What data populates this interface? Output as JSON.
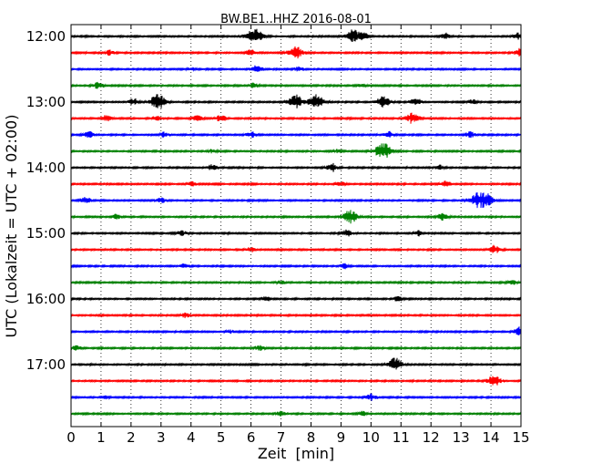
{
  "chart_data": {
    "type": "line",
    "title": "BW.BE1..HHZ 2016-08-01",
    "xlabel": "Zeit  [min]",
    "ylabel": "UTC (Lokalzeit = UTC + 02:00)",
    "xlim": [
      0,
      15
    ],
    "x_ticks": [
      "0",
      "1",
      "2",
      "3",
      "4",
      "5",
      "6",
      "7",
      "8",
      "9",
      "10",
      "11",
      "12",
      "13",
      "14",
      "15"
    ],
    "y_ticks": [
      {
        "label": "12:00",
        "row": 0
      },
      {
        "label": "13:00",
        "row": 4
      },
      {
        "label": "14:00",
        "row": 8
      },
      {
        "label": "15:00",
        "row": 12
      },
      {
        "label": "16:00",
        "row": 16
      },
      {
        "label": "17:00",
        "row": 20
      }
    ],
    "grid": "vertical-dotted",
    "row_minutes": 15,
    "colors": [
      "#000000",
      "#ff0000",
      "#0000ff",
      "#008000"
    ],
    "traces": [
      {
        "start": "12:00",
        "color": "#000000",
        "bursts": [
          [
            6.1,
            1.0
          ],
          [
            9.4,
            0.8
          ],
          [
            9.8,
            0.5
          ],
          [
            12.5,
            0.4
          ],
          [
            14.9,
            0.4
          ]
        ]
      },
      {
        "start": "12:15",
        "color": "#ff0000",
        "bursts": [
          [
            1.3,
            0.3
          ],
          [
            6.0,
            0.4
          ],
          [
            7.5,
            0.8
          ],
          [
            15.0,
            0.6
          ]
        ]
      },
      {
        "start": "12:30",
        "color": "#0000ff",
        "bursts": [
          [
            4.0,
            0.2
          ],
          [
            6.2,
            0.5
          ],
          [
            7.6,
            0.3
          ]
        ]
      },
      {
        "start": "12:45",
        "color": "#008000",
        "bursts": [
          [
            0.9,
            0.4
          ],
          [
            6.1,
            0.3
          ],
          [
            9.7,
            0.2
          ]
        ]
      },
      {
        "start": "13:00",
        "color": "#000000",
        "bursts": [
          [
            2.1,
            0.4
          ],
          [
            2.8,
            0.6
          ],
          [
            3.0,
            0.6
          ],
          [
            7.5,
            0.9
          ],
          [
            8.2,
            0.9
          ],
          [
            10.4,
            0.7
          ],
          [
            11.5,
            0.5
          ],
          [
            13.4,
            0.3
          ]
        ]
      },
      {
        "start": "13:15",
        "color": "#ff0000",
        "bursts": [
          [
            1.2,
            0.4
          ],
          [
            2.9,
            0.3
          ],
          [
            4.2,
            0.4
          ],
          [
            5.0,
            0.4
          ],
          [
            11.4,
            0.7
          ]
        ]
      },
      {
        "start": "13:30",
        "color": "#0000ff",
        "bursts": [
          [
            0.6,
            0.4
          ],
          [
            3.1,
            0.3
          ],
          [
            6.0,
            0.4
          ],
          [
            10.6,
            0.4
          ],
          [
            13.3,
            0.4
          ]
        ]
      },
      {
        "start": "13:45",
        "color": "#008000",
        "bursts": [
          [
            4.7,
            0.2
          ],
          [
            8.9,
            0.2
          ],
          [
            10.4,
            1.0
          ]
        ]
      },
      {
        "start": "14:00",
        "color": "#000000",
        "bursts": [
          [
            4.7,
            0.4
          ],
          [
            8.7,
            0.5
          ],
          [
            12.3,
            0.3
          ]
        ]
      },
      {
        "start": "14:15",
        "color": "#ff0000",
        "bursts": [
          [
            4.0,
            0.3
          ],
          [
            9.0,
            0.3
          ],
          [
            12.5,
            0.4
          ]
        ]
      },
      {
        "start": "14:30",
        "color": "#0000ff",
        "bursts": [
          [
            0.5,
            0.4
          ],
          [
            3.0,
            0.3
          ],
          [
            13.7,
            1.3
          ]
        ]
      },
      {
        "start": "14:45",
        "color": "#008000",
        "bursts": [
          [
            1.5,
            0.3
          ],
          [
            9.3,
            0.8
          ],
          [
            12.4,
            0.5
          ]
        ]
      },
      {
        "start": "15:00",
        "color": "#000000",
        "bursts": [
          [
            3.7,
            0.3
          ],
          [
            9.2,
            0.4
          ],
          [
            11.6,
            0.3
          ]
        ]
      },
      {
        "start": "15:15",
        "color": "#ff0000",
        "bursts": [
          [
            6.0,
            0.3
          ],
          [
            14.1,
            0.5
          ]
        ]
      },
      {
        "start": "15:30",
        "color": "#0000ff",
        "bursts": [
          [
            3.8,
            0.3
          ],
          [
            9.1,
            0.3
          ]
        ]
      },
      {
        "start": "15:45",
        "color": "#008000",
        "bursts": [
          [
            7.0,
            0.2
          ],
          [
            14.7,
            0.3
          ]
        ]
      },
      {
        "start": "16:00",
        "color": "#000000",
        "bursts": [
          [
            6.5,
            0.3
          ],
          [
            10.9,
            0.3
          ]
        ]
      },
      {
        "start": "16:15",
        "color": "#ff0000",
        "bursts": [
          [
            3.8,
            0.3
          ]
        ]
      },
      {
        "start": "16:30",
        "color": "#0000ff",
        "bursts": [
          [
            5.3,
            0.2
          ],
          [
            15.0,
            0.7
          ]
        ]
      },
      {
        "start": "16:45",
        "color": "#008000",
        "bursts": [
          [
            0.2,
            0.3
          ],
          [
            6.3,
            0.3
          ]
        ]
      },
      {
        "start": "17:00",
        "color": "#000000",
        "bursts": [
          [
            10.8,
            0.8
          ]
        ]
      },
      {
        "start": "17:15",
        "color": "#ff0000",
        "bursts": [
          [
            14.1,
            0.7
          ]
        ]
      },
      {
        "start": "17:30",
        "color": "#0000ff",
        "bursts": [
          [
            1.1,
            0.2
          ],
          [
            10.0,
            0.4
          ]
        ]
      },
      {
        "start": "17:45",
        "color": "#008000",
        "bursts": [
          [
            7.0,
            0.3
          ],
          [
            9.7,
            0.3
          ]
        ]
      }
    ]
  }
}
